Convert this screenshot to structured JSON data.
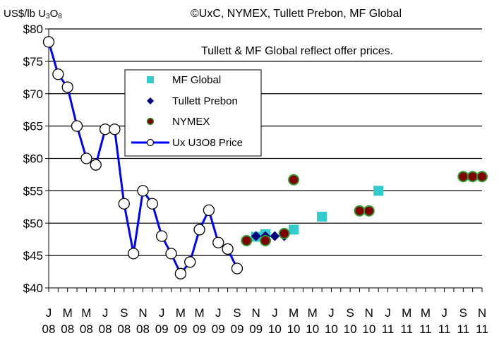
{
  "chart_data": {
    "type": "line",
    "ylabel_parts": {
      "main": "US$/lb U",
      "sub1": "3",
      "mid": "O",
      "sub2": "8"
    },
    "source": "©UxC, NYMEX, Tullett Prebon, MF Global",
    "annotation": "Tullett & MF Global reflect offer prices.",
    "ylim": [
      40,
      80
    ],
    "yticks": [
      40,
      45,
      50,
      55,
      60,
      65,
      70,
      75,
      80
    ],
    "ytick_labels": [
      "$40",
      "$45",
      "$50",
      "$55",
      "$60",
      "$65",
      "$70",
      "$75",
      "$80"
    ],
    "xlim": [
      0,
      46
    ],
    "xtick_labels": [
      {
        "i": 0,
        "month": "J",
        "year": "08"
      },
      {
        "i": 2,
        "month": "M",
        "year": "08"
      },
      {
        "i": 4,
        "month": "M",
        "year": "08"
      },
      {
        "i": 6,
        "month": "J",
        "year": "08"
      },
      {
        "i": 8,
        "month": "S",
        "year": "08"
      },
      {
        "i": 10,
        "month": "N",
        "year": "08"
      },
      {
        "i": 12,
        "month": "J",
        "year": "09"
      },
      {
        "i": 14,
        "month": "M",
        "year": "09"
      },
      {
        "i": 16,
        "month": "M",
        "year": "09"
      },
      {
        "i": 18,
        "month": "J",
        "year": "09"
      },
      {
        "i": 20,
        "month": "S",
        "year": "09"
      },
      {
        "i": 22,
        "month": "N",
        "year": "09"
      },
      {
        "i": 24,
        "month": "J",
        "year": "10"
      },
      {
        "i": 26,
        "month": "M",
        "year": "10"
      },
      {
        "i": 28,
        "month": "M",
        "year": "10"
      },
      {
        "i": 30,
        "month": "J",
        "year": "10"
      },
      {
        "i": 32,
        "month": "S",
        "year": "10"
      },
      {
        "i": 34,
        "month": "N",
        "year": "10"
      },
      {
        "i": 36,
        "month": "J",
        "year": "11"
      },
      {
        "i": 38,
        "month": "M",
        "year": "11"
      },
      {
        "i": 40,
        "month": "M",
        "year": "11"
      },
      {
        "i": 42,
        "month": "J",
        "year": "11"
      },
      {
        "i": 44,
        "month": "S",
        "year": "11"
      },
      {
        "i": 46,
        "month": "N",
        "year": "11"
      }
    ],
    "legend_position": "upper-left",
    "legend_order": [
      "MF Global",
      "Tullett Prebon",
      "NYMEX",
      "Ux U3O8 Price"
    ],
    "series": [
      {
        "name": "Ux U3O8 Price",
        "type": "line",
        "color": "#0000ff",
        "x": [
          0,
          1,
          2,
          3,
          4,
          5,
          6,
          7,
          8,
          9,
          10,
          11,
          12,
          13,
          14,
          15,
          16,
          17,
          18,
          19,
          20
        ],
        "values": [
          78,
          73,
          71,
          65,
          60,
          59,
          64.5,
          64.5,
          53,
          45.3,
          55,
          53,
          48,
          45.3,
          42.2,
          44,
          49,
          52,
          47,
          46,
          43
        ]
      },
      {
        "name": "MF Global",
        "type": "scatter",
        "color": "#33cccc",
        "x": [
          22,
          23,
          26,
          29,
          35
        ],
        "values": [
          47.9,
          48.3,
          49,
          51,
          55
        ]
      },
      {
        "name": "Tullett Prebon",
        "type": "scatter",
        "color": "#000080",
        "x": [
          22,
          23,
          24,
          25
        ],
        "values": [
          48,
          48,
          48,
          48
        ]
      },
      {
        "name": "NYMEX",
        "type": "scatter",
        "color": "#800000",
        "edge_color": "#339933",
        "x": [
          21,
          23,
          25,
          26,
          33,
          34,
          44,
          45,
          46
        ],
        "values": [
          47.3,
          47.3,
          48.4,
          56.7,
          51.9,
          51.9,
          57.2,
          57.2,
          57.2
        ]
      }
    ]
  }
}
